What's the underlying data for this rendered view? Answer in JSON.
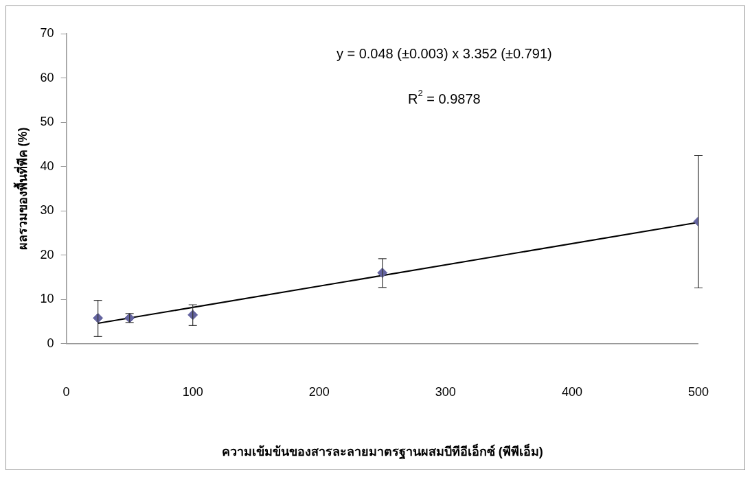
{
  "chart_data": {
    "type": "scatter",
    "xlabel": "ความเข้มข้นของสารละลายมาตรฐานผสมบีทีอีเอ็กซ์ (พีพีเอ็ม)",
    "ylabel": "ผลรวมของพื้นที่พีค (%)",
    "annotations": [
      "y = 0.048 (±0.003) x 3.352 (±0.791)",
      "R$^{2}$ = 0.9878"
    ],
    "series": [
      {
        "x": [
          25,
          50,
          100,
          250,
          500
        ],
        "values": [
          5.8,
          5.8,
          6.5,
          16,
          27.6
        ],
        "errors": [
          [
            1.6,
            9.8
          ],
          [
            4.8,
            6.8
          ],
          [
            4.1,
            8.8
          ],
          [
            12.7,
            19.2
          ],
          [
            12.6,
            42.5
          ]
        ],
        "color": "#6464a0",
        "marker": "diamond"
      },
      {
        "type": "line",
        "x": [
          25,
          500
        ],
        "values": [
          4.6,
          27.4
        ],
        "color": "#000000",
        "marker": "none",
        "line_style": "solid"
      }
    ],
    "xlim": [
      0,
      500
    ],
    "xticks": [
      0,
      100,
      200,
      300,
      400,
      500
    ],
    "ylim": [
      0,
      70
    ],
    "yticks": [
      0,
      10,
      20,
      30,
      40,
      50,
      60,
      70
    ],
    "grid": false,
    "legend": false
  }
}
